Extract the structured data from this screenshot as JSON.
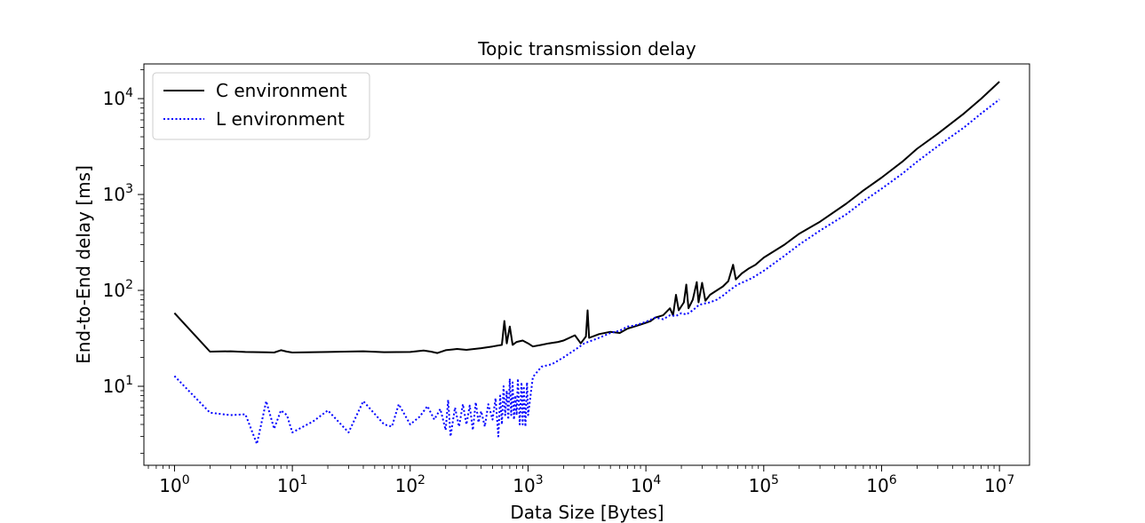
{
  "chart_data": {
    "type": "line",
    "title": "Topic transmission delay",
    "xlabel": "Data Size [Bytes]",
    "ylabel": "End-to-End delay [ms]",
    "xscale": "log",
    "yscale": "log",
    "xlim": [
      0.55,
      18000000
    ],
    "ylim": [
      1.5,
      23000
    ],
    "grid": false,
    "legend_position": "upper left",
    "x_ticks": [
      {
        "value": 1,
        "base": "10",
        "exp": "0"
      },
      {
        "value": 10,
        "base": "10",
        "exp": "1"
      },
      {
        "value": 100,
        "base": "10",
        "exp": "2"
      },
      {
        "value": 1000,
        "base": "10",
        "exp": "3"
      },
      {
        "value": 10000,
        "base": "10",
        "exp": "4"
      },
      {
        "value": 100000,
        "base": "10",
        "exp": "5"
      },
      {
        "value": 1000000,
        "base": "10",
        "exp": "6"
      },
      {
        "value": 10000000,
        "base": "10",
        "exp": "7"
      }
    ],
    "y_ticks": [
      {
        "value": 10,
        "base": "10",
        "exp": "1"
      },
      {
        "value": 100,
        "base": "10",
        "exp": "2"
      },
      {
        "value": 1000,
        "base": "10",
        "exp": "3"
      },
      {
        "value": 10000,
        "base": "10",
        "exp": "4"
      }
    ],
    "series": [
      {
        "name": "C environment",
        "color": "#000000",
        "style": "solid",
        "points": [
          [
            1,
            58
          ],
          [
            2,
            23
          ],
          [
            3,
            23.2
          ],
          [
            4,
            22.8
          ],
          [
            6,
            22.6
          ],
          [
            7,
            22.5
          ],
          [
            8,
            23.8
          ],
          [
            9,
            23
          ],
          [
            10,
            22.5
          ],
          [
            20,
            22.8
          ],
          [
            40,
            23.2
          ],
          [
            60,
            22.7
          ],
          [
            100,
            22.8
          ],
          [
            130,
            23.6
          ],
          [
            150,
            23
          ],
          [
            170,
            22.2
          ],
          [
            200,
            23.8
          ],
          [
            250,
            24.5
          ],
          [
            300,
            24
          ],
          [
            400,
            25
          ],
          [
            500,
            26
          ],
          [
            600,
            27
          ],
          [
            630,
            48
          ],
          [
            660,
            28
          ],
          [
            700,
            42
          ],
          [
            740,
            27
          ],
          [
            800,
            29
          ],
          [
            900,
            30
          ],
          [
            1000,
            28
          ],
          [
            1100,
            26
          ],
          [
            1300,
            27
          ],
          [
            1500,
            28
          ],
          [
            1800,
            29
          ],
          [
            2000,
            30
          ],
          [
            2500,
            34
          ],
          [
            2800,
            28
          ],
          [
            3100,
            33
          ],
          [
            3200,
            62
          ],
          [
            3300,
            32
          ],
          [
            4000,
            35
          ],
          [
            5000,
            37
          ],
          [
            6000,
            36
          ],
          [
            7000,
            40
          ],
          [
            8000,
            42
          ],
          [
            9000,
            44
          ],
          [
            10000,
            46
          ],
          [
            11000,
            48
          ],
          [
            12000,
            52
          ],
          [
            14000,
            55
          ],
          [
            16000,
            65
          ],
          [
            17000,
            55
          ],
          [
            18000,
            90
          ],
          [
            19000,
            62
          ],
          [
            21000,
            75
          ],
          [
            22000,
            115
          ],
          [
            23000,
            65
          ],
          [
            25000,
            80
          ],
          [
            27000,
            122
          ],
          [
            28000,
            75
          ],
          [
            30000,
            120
          ],
          [
            32000,
            78
          ],
          [
            35000,
            90
          ],
          [
            40000,
            100
          ],
          [
            45000,
            110
          ],
          [
            50000,
            125
          ],
          [
            55000,
            185
          ],
          [
            58000,
            130
          ],
          [
            65000,
            150
          ],
          [
            75000,
            170
          ],
          [
            85000,
            185
          ],
          [
            100000,
            220
          ],
          [
            150000,
            300
          ],
          [
            200000,
            390
          ],
          [
            300000,
            520
          ],
          [
            500000,
            800
          ],
          [
            700000,
            1100
          ],
          [
            1000000,
            1500
          ],
          [
            1500000,
            2200
          ],
          [
            2000000,
            3000
          ],
          [
            3000000,
            4300
          ],
          [
            5000000,
            7000
          ],
          [
            7000000,
            10000
          ],
          [
            10000000,
            15000
          ]
        ]
      },
      {
        "name": "L environment",
        "color": "#0000ff",
        "style": "dotted",
        "points": [
          [
            1,
            12.8
          ],
          [
            2,
            5.3
          ],
          [
            3,
            5
          ],
          [
            4,
            5.1
          ],
          [
            5,
            2.5
          ],
          [
            6,
            7
          ],
          [
            7,
            3.6
          ],
          [
            8,
            5.6
          ],
          [
            9,
            5
          ],
          [
            10,
            3.3
          ],
          [
            15,
            4.3
          ],
          [
            20,
            5.6
          ],
          [
            30,
            3.3
          ],
          [
            40,
            7
          ],
          [
            60,
            4
          ],
          [
            70,
            3.8
          ],
          [
            80,
            6.5
          ],
          [
            100,
            4
          ],
          [
            120,
            4.8
          ],
          [
            140,
            6.2
          ],
          [
            160,
            4.5
          ],
          [
            180,
            5.8
          ],
          [
            200,
            3.5
          ],
          [
            210,
            7.2
          ],
          [
            220,
            3
          ],
          [
            240,
            6
          ],
          [
            260,
            3.8
          ],
          [
            280,
            6.5
          ],
          [
            300,
            4
          ],
          [
            320,
            6.3
          ],
          [
            340,
            3.5
          ],
          [
            360,
            6.8
          ],
          [
            380,
            4.2
          ],
          [
            400,
            5.5
          ],
          [
            430,
            3.8
          ],
          [
            460,
            6.5
          ],
          [
            500,
            4.5
          ],
          [
            530,
            7.5
          ],
          [
            560,
            3
          ],
          [
            580,
            8
          ],
          [
            600,
            4
          ],
          [
            620,
            10
          ],
          [
            640,
            5
          ],
          [
            660,
            9
          ],
          [
            680,
            4.5
          ],
          [
            700,
            12
          ],
          [
            720,
            5
          ],
          [
            740,
            11
          ],
          [
            760,
            4.5
          ],
          [
            780,
            8
          ],
          [
            800,
            5
          ],
          [
            820,
            12
          ],
          [
            850,
            4
          ],
          [
            880,
            11
          ],
          [
            900,
            4
          ],
          [
            920,
            10
          ],
          [
            950,
            3.8
          ],
          [
            980,
            11
          ],
          [
            1000,
            5
          ],
          [
            1100,
            12.5
          ],
          [
            1300,
            16
          ],
          [
            1600,
            17
          ],
          [
            2000,
            20
          ],
          [
            2500,
            24
          ],
          [
            3000,
            28
          ],
          [
            4000,
            32
          ],
          [
            5000,
            36
          ],
          [
            6000,
            38
          ],
          [
            7000,
            42
          ],
          [
            8000,
            43
          ],
          [
            9000,
            45
          ],
          [
            10000,
            47
          ],
          [
            12000,
            52
          ],
          [
            14000,
            50
          ],
          [
            16000,
            55
          ],
          [
            18000,
            54
          ],
          [
            20000,
            58
          ],
          [
            22000,
            56
          ],
          [
            25000,
            62
          ],
          [
            28000,
            70
          ],
          [
            30000,
            72
          ],
          [
            35000,
            75
          ],
          [
            40000,
            80
          ],
          [
            45000,
            88
          ],
          [
            50000,
            98
          ],
          [
            60000,
            115
          ],
          [
            70000,
            125
          ],
          [
            80000,
            135
          ],
          [
            100000,
            160
          ],
          [
            150000,
            230
          ],
          [
            200000,
            300
          ],
          [
            300000,
            420
          ],
          [
            500000,
            620
          ],
          [
            700000,
            850
          ],
          [
            1000000,
            1150
          ],
          [
            1500000,
            1650
          ],
          [
            2000000,
            2200
          ],
          [
            3000000,
            3200
          ],
          [
            5000000,
            5000
          ],
          [
            7000000,
            7000
          ],
          [
            10000000,
            9800
          ]
        ]
      }
    ]
  }
}
